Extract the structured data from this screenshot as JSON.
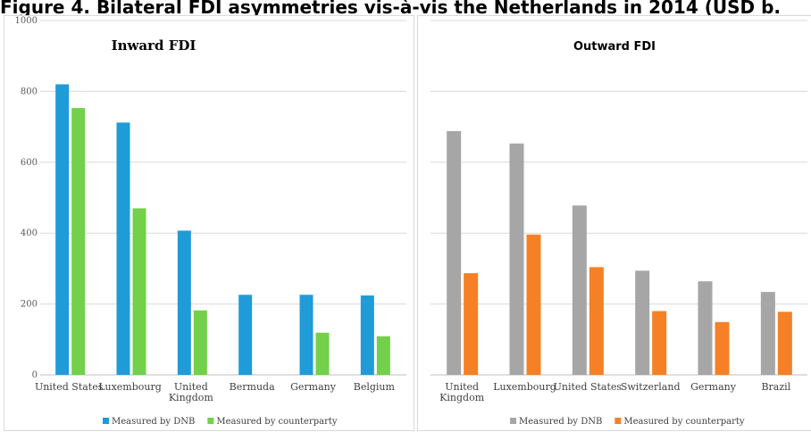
{
  "figure_title": "Figure 4. Bilateral FDI asymmetries vis-à-vis the Netherlands in 2014 (USD b.",
  "chart_data": [
    {
      "type": "bar",
      "title": "Inward FDI",
      "categories": [
        "United States",
        "Luxembourg",
        "United\nKingdom",
        "Bermuda",
        "Germany",
        "Belgium"
      ],
      "series": [
        {
          "name": "Measured by DNB",
          "color": "#1f9bd7",
          "values": [
            820,
            712,
            407,
            226,
            226,
            224
          ]
        },
        {
          "name": "Measured by counterparty",
          "color": "#72d04a",
          "values": [
            753,
            470,
            182,
            null,
            119,
            109
          ]
        }
      ],
      "ylim": [
        0,
        1000
      ],
      "yticks": [
        "0",
        "200",
        "400",
        "600",
        "800",
        "1000"
      ],
      "xlabel": "",
      "ylabel": "",
      "legend": "bottom",
      "grid": true
    },
    {
      "type": "bar",
      "title": "Outward FDI",
      "categories": [
        "United\nKingdom",
        "Luxembourg",
        "United States",
        "Switzerland",
        "Germany",
        "Brazil"
      ],
      "series": [
        {
          "name": "Measured by DNB",
          "color": "#a6a6a6",
          "values": [
            688,
            653,
            478,
            294,
            264,
            234
          ]
        },
        {
          "name": "Measured by counterparty",
          "color": "#f58025",
          "values": [
            287,
            396,
            304,
            180,
            149,
            178
          ]
        }
      ],
      "ylim": [
        0,
        1000
      ],
      "xlabel": "",
      "ylabel": "",
      "legend": "bottom",
      "grid": true
    }
  ]
}
